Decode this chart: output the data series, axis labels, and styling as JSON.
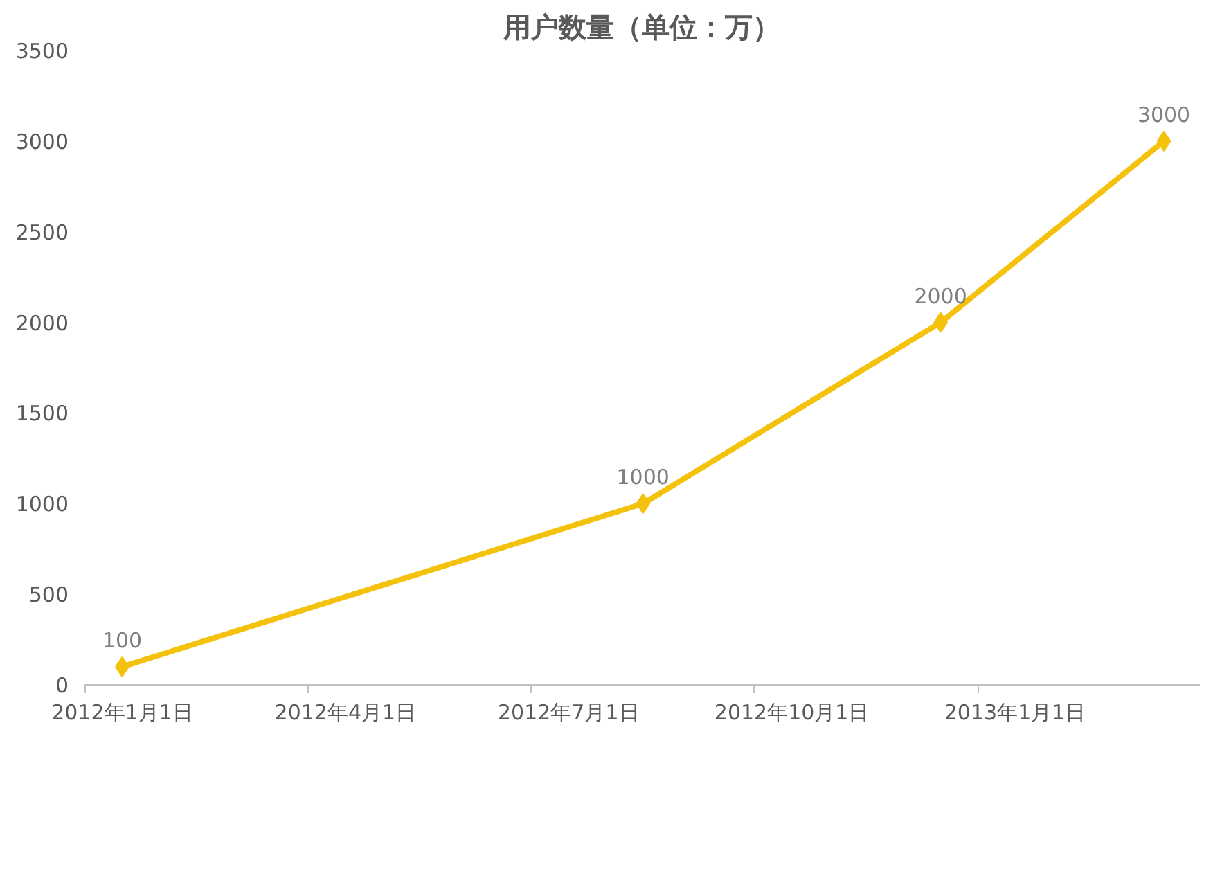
{
  "chart_data": {
    "type": "line",
    "title": "用户数量（单位：万）",
    "x": [
      "2012-01",
      "2012-08",
      "2012-12",
      "2013-03"
    ],
    "series": [
      {
        "color": "#f4c20d",
        "values": [
          100,
          1000,
          2000,
          3000
        ]
      }
    ],
    "xlim": [
      "2011-12-16",
      "2013-03-16"
    ],
    "xticks": [
      {
        "value": "2012-01-01",
        "label": "2012年1月1日"
      },
      {
        "value": "2012-04-01",
        "label": "2012年4月1日"
      },
      {
        "value": "2012-07-01",
        "label": "2012年7月1日"
      },
      {
        "value": "2012-10-01",
        "label": "2012年10月1日"
      },
      {
        "value": "2013-01-01",
        "label": "2013年1月1日"
      }
    ],
    "ylim": [
      0,
      3500
    ],
    "yticks": [
      0,
      500,
      1000,
      1500,
      2000,
      2500,
      3000,
      3500
    ],
    "grid": false,
    "marker": "diamond",
    "line_style": "solid",
    "data_labels": true
  }
}
